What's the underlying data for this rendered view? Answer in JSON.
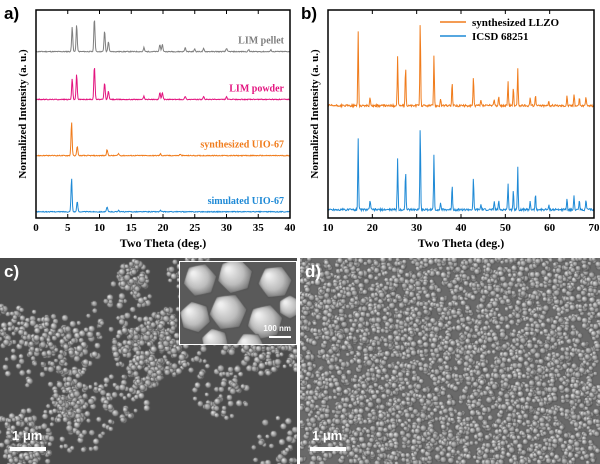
{
  "panels": {
    "a": "a)",
    "b": "b)",
    "c": "c)",
    "d": "d)"
  },
  "colors": {
    "gray": "#7f7f7f",
    "pink": "#e3147f",
    "orange": "#f07c1c",
    "blue": "#1f8ad6"
  },
  "chart_data": [
    {
      "type": "line",
      "panel": "a",
      "xlabel": "Two Theta (deg.)",
      "ylabel": "Normalized Intensity (a. u.)",
      "xlim": [
        0,
        40
      ],
      "xticks": [
        0,
        5,
        10,
        15,
        20,
        25,
        30,
        35,
        40
      ],
      "y_ticks_shown": false,
      "series": [
        {
          "name": "LIM pellet",
          "color": "#7f7f7f",
          "peaks": [
            [
              5.7,
              0.75
            ],
            [
              6.4,
              0.8
            ],
            [
              9.2,
              1.0
            ],
            [
              10.8,
              0.62
            ],
            [
              11.4,
              0.3
            ],
            [
              17.0,
              0.12
            ],
            [
              19.5,
              0.22
            ],
            [
              19.9,
              0.22
            ],
            [
              23.5,
              0.12
            ],
            [
              25.0,
              0.08
            ],
            [
              26.4,
              0.09
            ],
            [
              30.0,
              0.1
            ],
            [
              33.5,
              0.06
            ],
            [
              37.0,
              0.05
            ]
          ]
        },
        {
          "name": "LIM powder",
          "color": "#e3147f",
          "peaks": [
            [
              5.7,
              0.62
            ],
            [
              6.4,
              0.75
            ],
            [
              9.2,
              1.0
            ],
            [
              10.8,
              0.5
            ],
            [
              11.4,
              0.26
            ],
            [
              17.0,
              0.1
            ],
            [
              19.5,
              0.2
            ],
            [
              19.9,
              0.2
            ],
            [
              23.5,
              0.1
            ],
            [
              26.4,
              0.08
            ],
            [
              30.0,
              0.08
            ]
          ]
        },
        {
          "name": "synthesized UIO-67",
          "color": "#f07c1c",
          "peaks": [
            [
              5.6,
              1.0
            ],
            [
              6.5,
              0.28
            ],
            [
              11.2,
              0.18
            ],
            [
              13.0,
              0.06
            ],
            [
              19.6,
              0.05
            ],
            [
              22.7,
              0.04
            ]
          ]
        },
        {
          "name": "simulated UIO-67",
          "color": "#1f8ad6",
          "peaks": [
            [
              5.6,
              1.0
            ],
            [
              6.5,
              0.3
            ],
            [
              11.2,
              0.14
            ],
            [
              13.0,
              0.05
            ],
            [
              19.6,
              0.04
            ]
          ]
        }
      ]
    },
    {
      "type": "line",
      "panel": "b",
      "xlabel": "Two Theta (deg.)",
      "ylabel": "Normalized Intensity (a. u.)",
      "xlim": [
        10,
        70
      ],
      "xticks": [
        10,
        20,
        30,
        40,
        50,
        60,
        70
      ],
      "y_ticks_shown": false,
      "legend": "top-right",
      "series": [
        {
          "name": "synthesized LLZO",
          "color": "#f07c1c",
          "peaks": [
            [
              16.8,
              0.88
            ],
            [
              19.5,
              0.1
            ],
            [
              25.7,
              0.58
            ],
            [
              27.5,
              0.45
            ],
            [
              30.8,
              1.0
            ],
            [
              33.9,
              0.6
            ],
            [
              35.4,
              0.08
            ],
            [
              38.0,
              0.28
            ],
            [
              42.8,
              0.35
            ],
            [
              44.5,
              0.06
            ],
            [
              47.5,
              0.08
            ],
            [
              48.5,
              0.1
            ],
            [
              50.6,
              0.28
            ],
            [
              51.8,
              0.22
            ],
            [
              52.8,
              0.43
            ],
            [
              55.6,
              0.1
            ],
            [
              56.8,
              0.14
            ],
            [
              59.8,
              0.06
            ],
            [
              63.9,
              0.12
            ],
            [
              65.5,
              0.14
            ],
            [
              66.7,
              0.1
            ],
            [
              68.2,
              0.1
            ]
          ]
        },
        {
          "name": "ICSD 68251",
          "color": "#1f8ad6",
          "peaks": [
            [
              16.8,
              0.85
            ],
            [
              19.5,
              0.12
            ],
            [
              25.7,
              0.6
            ],
            [
              27.5,
              0.47
            ],
            [
              30.8,
              1.0
            ],
            [
              33.9,
              0.65
            ],
            [
              35.4,
              0.08
            ],
            [
              38.0,
              0.3
            ],
            [
              42.8,
              0.37
            ],
            [
              44.5,
              0.06
            ],
            [
              47.5,
              0.1
            ],
            [
              48.5,
              0.1
            ],
            [
              50.6,
              0.32
            ],
            [
              51.8,
              0.24
            ],
            [
              52.8,
              0.5
            ],
            [
              55.6,
              0.1
            ],
            [
              56.8,
              0.18
            ],
            [
              59.8,
              0.06
            ],
            [
              63.9,
              0.14
            ],
            [
              65.5,
              0.16
            ],
            [
              66.7,
              0.12
            ],
            [
              68.2,
              0.12
            ]
          ]
        }
      ]
    }
  ],
  "sem": {
    "c": {
      "scale": "1 μm",
      "inset_scale": "100 nm"
    },
    "d": {
      "scale": "1 μm"
    }
  }
}
